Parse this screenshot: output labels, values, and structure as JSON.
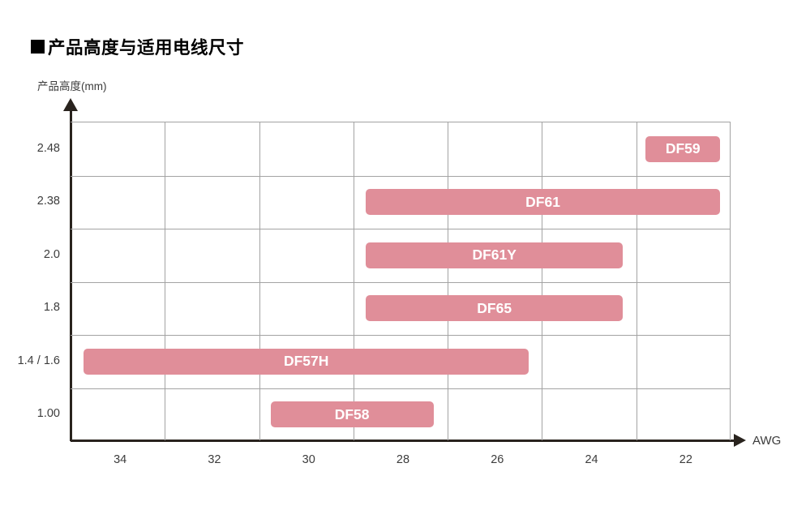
{
  "title_bullet": "■",
  "title_text": "产品高度与适用电线尺寸",
  "title": "■产品高度与适用电线尺寸",
  "y_axis": {
    "label": "产品高度(mm)"
  },
  "x_axis": {
    "label": "AWG"
  },
  "colors": {
    "bar_fill": "#e08e99",
    "bar_text": "#ffffff",
    "grid_line": "#a3a3a3",
    "axis_line": "#29231e",
    "label_text": "#3c3c3c",
    "title_text_color": "#000000"
  },
  "chart_data": {
    "type": "bar",
    "subtype": "horizontal-range",
    "title": "产品高度与适用电线尺寸",
    "xlabel": "AWG",
    "ylabel": "产品高度(mm)",
    "x_categories": [
      34,
      32,
      30,
      28,
      26,
      24,
      22
    ],
    "grid": true,
    "legend": false,
    "rows": [
      {
        "product_height_mm": "2.48",
        "bar": {
          "label": "DF59",
          "awg_from": 22,
          "awg_to": 22,
          "col_start": 6.1,
          "col_end": 6.89
        }
      },
      {
        "product_height_mm": "2.38",
        "bar": {
          "label": "DF61",
          "awg_from": 28,
          "awg_to": 22,
          "col_start": 3.13,
          "col_end": 6.89
        }
      },
      {
        "product_height_mm": "2.0",
        "bar": {
          "label": "DF61Y",
          "awg_from": 28,
          "awg_to": 24,
          "col_start": 3.13,
          "col_end": 5.86
        }
      },
      {
        "product_height_mm": "1.8",
        "bar": {
          "label": "DF65",
          "awg_from": 28,
          "awg_to": 24,
          "col_start": 3.13,
          "col_end": 5.86
        }
      },
      {
        "product_height_mm": "1.4 / 1.6",
        "bar": {
          "label": "DF57H",
          "awg_from": 34,
          "awg_to": 26,
          "col_start": 0.14,
          "col_end": 4.86
        }
      },
      {
        "product_height_mm": "1.00",
        "bar": {
          "label": "DF58",
          "awg_from": 30,
          "awg_to": 28,
          "col_start": 2.12,
          "col_end": 3.85
        }
      }
    ]
  }
}
